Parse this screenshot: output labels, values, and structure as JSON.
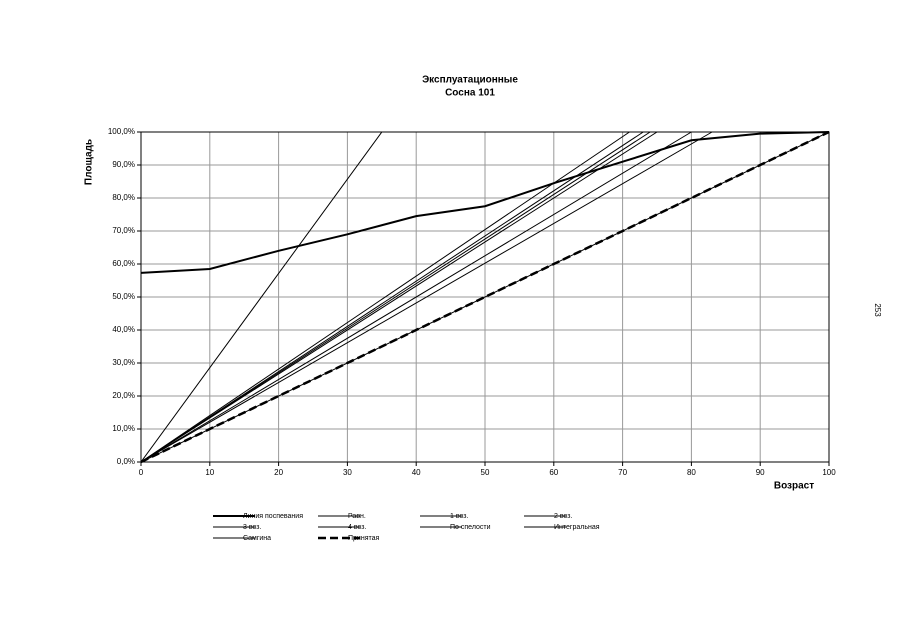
{
  "page_number": "253",
  "chart_data": {
    "type": "line",
    "title": "Эксплуатационные",
    "subtitle": "Сосна 101",
    "x_label": "Возраст",
    "y_label": "Площадь",
    "xlim": [
      0,
      100
    ],
    "xticks": [
      0,
      10,
      20,
      30,
      40,
      50,
      60,
      70,
      80,
      90,
      100
    ],
    "ylim": [
      0,
      100
    ],
    "yticks": [
      {
        "value": 0,
        "label": "0,0%"
      },
      {
        "value": 10,
        "label": "10,0%"
      },
      {
        "value": 20,
        "label": "20,0%"
      },
      {
        "value": 30,
        "label": "30,0%"
      },
      {
        "value": 40,
        "label": "40,0%"
      },
      {
        "value": 50,
        "label": "50,0%"
      },
      {
        "value": 60,
        "label": "60,0%"
      },
      {
        "value": 70,
        "label": "70,0%"
      },
      {
        "value": 80,
        "label": "80,0%"
      },
      {
        "value": 90,
        "label": "90,0%"
      },
      {
        "value": 100,
        "label": "100,0%"
      }
    ],
    "grid": true,
    "series": [
      {
        "name": "Линия поспевания",
        "color": "#000000",
        "width": 2,
        "dash": false,
        "x": [
          0,
          10,
          20,
          30,
          40,
          50,
          60,
          70,
          80,
          90,
          100
        ],
        "values": [
          57.3,
          58.5,
          64,
          69,
          74.5,
          77.5,
          84.5,
          91,
          97.5,
          99.5,
          100
        ]
      },
      {
        "name": "Равн.",
        "color": "#000000",
        "width": 1,
        "dash": false,
        "x": [
          0,
          100
        ],
        "values": [
          0,
          100
        ]
      },
      {
        "name": "1 воз.",
        "color": "#000000",
        "width": 1,
        "dash": false,
        "x": [
          0,
          35
        ],
        "values": [
          0,
          100
        ]
      },
      {
        "name": "2 воз.",
        "color": "#000000",
        "width": 1,
        "dash": false,
        "x": [
          0,
          71
        ],
        "values": [
          0,
          100
        ]
      },
      {
        "name": "3 воз.",
        "color": "#000000",
        "width": 1,
        "dash": false,
        "x": [
          0,
          73
        ],
        "values": [
          0,
          100
        ]
      },
      {
        "name": "4 воз.",
        "color": "#000000",
        "width": 1,
        "dash": false,
        "x": [
          0,
          75
        ],
        "values": [
          0,
          100
        ]
      },
      {
        "name": "По спелости",
        "color": "#000000",
        "width": 1,
        "dash": false,
        "x": [
          0,
          80
        ],
        "values": [
          0,
          100
        ]
      },
      {
        "name": "Интегральная",
        "color": "#000000",
        "width": 1,
        "dash": false,
        "x": [
          0,
          83
        ],
        "values": [
          0,
          100
        ]
      },
      {
        "name": "Самгина",
        "color": "#000000",
        "width": 1,
        "dash": false,
        "x": [
          0,
          74
        ],
        "values": [
          0,
          100
        ]
      },
      {
        "name": "Принятая",
        "color": "#000000",
        "width": 2.5,
        "dash": true,
        "x": [
          0,
          100
        ],
        "values": [
          0,
          100
        ]
      }
    ]
  }
}
